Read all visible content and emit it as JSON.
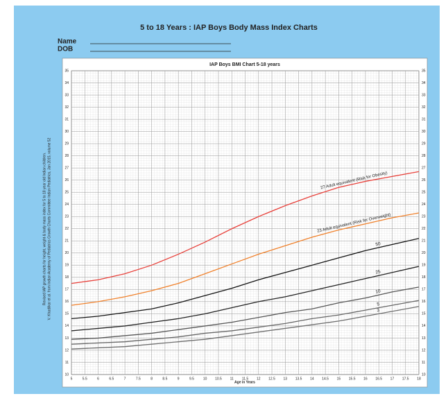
{
  "page_title": "5 to 18 Years : IAP Boys Body Mass Index Charts",
  "name_label": "Name",
  "dob_label": "DOB",
  "side_note": [
    "Revised IAP growth charts for height, weight & body mass index for 5 to 18 year old Indian children.",
    "V. Khadilkar et al. from Indian Academy of Pediatrics Growth Charts Committee Indian Pediatrics, Jan 2015, volume 52"
  ],
  "chart_data": {
    "type": "line",
    "title": "IAP Boys BMI Chart 5-18 years",
    "x_label": "Age in Years",
    "x": [
      5,
      6,
      7,
      8,
      9,
      10,
      11,
      12,
      13,
      14,
      15,
      16,
      17,
      18
    ],
    "series": [
      {
        "name": "27 Adult equivalent (Risk for Obesity)",
        "color": "#e8403a",
        "values": [
          17.5,
          17.8,
          18.3,
          19.0,
          19.9,
          20.9,
          22.0,
          23.0,
          23.9,
          24.7,
          25.4,
          25.9,
          26.3,
          26.7
        ]
      },
      {
        "name": "23 Adult equivalent (Risk for Overweight)",
        "color": "#f0802a",
        "values": [
          15.7,
          16.0,
          16.4,
          16.9,
          17.5,
          18.3,
          19.1,
          19.9,
          20.6,
          21.3,
          21.9,
          22.4,
          22.9,
          23.3
        ]
      },
      {
        "name": "50",
        "color": "#111111",
        "values": [
          14.6,
          14.8,
          15.1,
          15.4,
          15.9,
          16.5,
          17.1,
          17.8,
          18.4,
          19.0,
          19.6,
          20.2,
          20.7,
          21.2
        ]
      },
      {
        "name": "25",
        "color": "#222222",
        "values": [
          13.6,
          13.8,
          14.0,
          14.3,
          14.6,
          15.0,
          15.5,
          16.0,
          16.4,
          16.9,
          17.4,
          17.9,
          18.4,
          18.9
        ]
      },
      {
        "name": "10",
        "color": "#555555",
        "values": [
          12.9,
          13.0,
          13.2,
          13.4,
          13.7,
          14.0,
          14.3,
          14.7,
          15.1,
          15.4,
          15.9,
          16.3,
          16.8,
          17.2
        ]
      },
      {
        "name": "5",
        "color": "#666666",
        "values": [
          12.5,
          12.6,
          12.7,
          12.9,
          13.1,
          13.4,
          13.6,
          13.9,
          14.2,
          14.6,
          14.9,
          15.3,
          15.7,
          16.1
        ]
      },
      {
        "name": "3",
        "color": "#6e6e6e",
        "values": [
          12.1,
          12.2,
          12.3,
          12.5,
          12.7,
          12.9,
          13.2,
          13.5,
          13.8,
          14.1,
          14.4,
          14.8,
          15.2,
          15.6
        ]
      }
    ],
    "xlim": [
      5,
      18
    ],
    "xticks": [
      5,
      5.5,
      6,
      6.5,
      7,
      7.5,
      8,
      8.5,
      9,
      9.5,
      10,
      10.5,
      11,
      11.5,
      12,
      12.5,
      13,
      13.5,
      14,
      14.5,
      15,
      15.5,
      16,
      16.5,
      17,
      17.5,
      18
    ],
    "ylim": [
      10,
      35
    ],
    "yticks": [
      10,
      11,
      12,
      13,
      14,
      15,
      16,
      17,
      18,
      19,
      20,
      21,
      22,
      23,
      24,
      25,
      26,
      27,
      28,
      29,
      30,
      31,
      32,
      33,
      34,
      35
    ],
    "grid": true
  }
}
